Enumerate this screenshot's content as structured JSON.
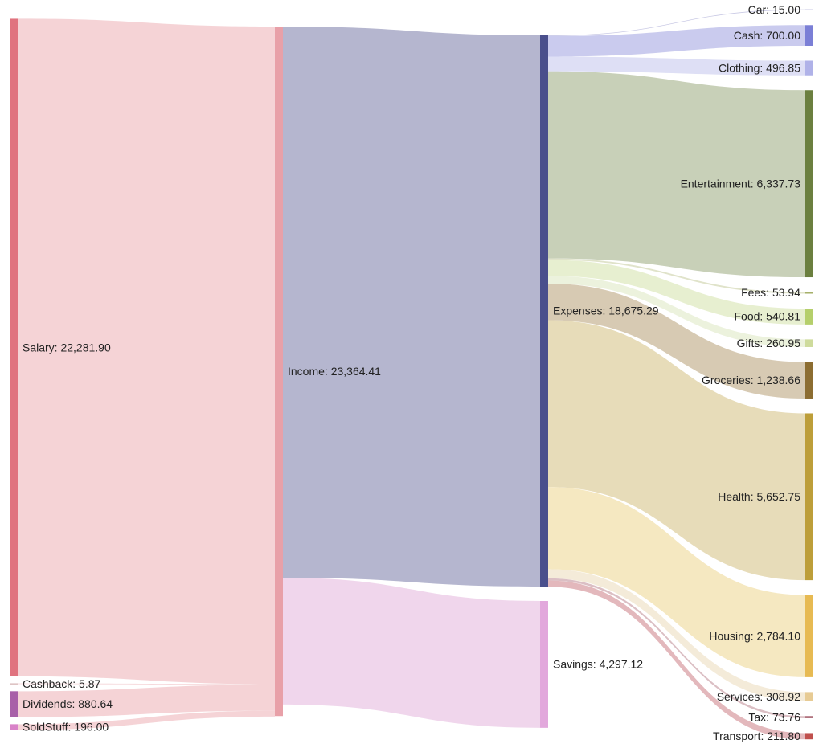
{
  "chart_data": {
    "type": "sankey",
    "title": "",
    "nodes": [
      {
        "id": "salary",
        "name": "Salary",
        "value_label": "22,281.90",
        "value": 22281.9,
        "column": 0,
        "color": "#e0737f"
      },
      {
        "id": "cashback",
        "name": "Cashback",
        "value_label": "5.87",
        "value": 5.87,
        "column": 0,
        "color": "#c9a0a0"
      },
      {
        "id": "dividends",
        "name": "Dividends",
        "value_label": "880.64",
        "value": 880.64,
        "column": 0,
        "color": "#a860a8"
      },
      {
        "id": "soldstuff",
        "name": "SoldStuff",
        "value_label": "196.00",
        "value": 196.0,
        "column": 0,
        "color": "#d982c8"
      },
      {
        "id": "income",
        "name": "Income",
        "value_label": "23,364.41",
        "value": 23364.41,
        "column": 1,
        "color": "#e8a0a8"
      },
      {
        "id": "expenses",
        "name": "Expenses",
        "value_label": "18,675.29",
        "value": 18675.29,
        "column": 2,
        "color": "#4a4f8c"
      },
      {
        "id": "savings",
        "name": "Savings",
        "value_label": "4,297.12",
        "value": 4297.12,
        "column": 2,
        "color": "#e2a8dc"
      },
      {
        "id": "car",
        "name": "Car",
        "value_label": "15.00",
        "value": 15.0,
        "column": 3,
        "color": "#8a8ac8"
      },
      {
        "id": "cash",
        "name": "Cash",
        "value_label": "700.00",
        "value": 700.0,
        "column": 3,
        "color": "#7b7fd6"
      },
      {
        "id": "clothing",
        "name": "Clothing",
        "value_label": "496.85",
        "value": 496.85,
        "column": 3,
        "color": "#b0b2e8"
      },
      {
        "id": "entertainment",
        "name": "Entertainment",
        "value_label": "6,337.73",
        "value": 6337.73,
        "column": 3,
        "color": "#6b7f3f"
      },
      {
        "id": "fees",
        "name": "Fees",
        "value_label": "53.94",
        "value": 53.94,
        "column": 3,
        "color": "#a6b06a"
      },
      {
        "id": "food",
        "name": "Food",
        "value_label": "540.81",
        "value": 540.81,
        "column": 3,
        "color": "#b5cf6b"
      },
      {
        "id": "gifts",
        "name": "Gifts",
        "value_label": "260.95",
        "value": 260.95,
        "column": 3,
        "color": "#cedb9c"
      },
      {
        "id": "groceries",
        "name": "Groceries",
        "value_label": "1,238.66",
        "value": 1238.66,
        "column": 3,
        "color": "#8c6d31"
      },
      {
        "id": "health",
        "name": "Health",
        "value_label": "5,652.75",
        "value": 5652.75,
        "column": 3,
        "color": "#bd9e39"
      },
      {
        "id": "housing",
        "name": "Housing",
        "value_label": "2,784.10",
        "value": 2784.1,
        "column": 3,
        "color": "#e7ba52"
      },
      {
        "id": "services",
        "name": "Services",
        "value_label": "308.92",
        "value": 308.92,
        "column": 3,
        "color": "#e7cb94"
      },
      {
        "id": "tax",
        "name": "Tax",
        "value_label": "73.76",
        "value": 73.76,
        "column": 3,
        "color": "#ad6c78"
      },
      {
        "id": "transport",
        "name": "Transport",
        "value_label": "211.80",
        "value": 211.8,
        "column": 3,
        "color": "#c0504d"
      }
    ],
    "links": [
      {
        "source": "salary",
        "target": "income",
        "value": 22281.9,
        "color": "#f2c4c8"
      },
      {
        "source": "cashback",
        "target": "income",
        "value": 5.87,
        "color": "#f2c4c8"
      },
      {
        "source": "dividends",
        "target": "income",
        "value": 880.64,
        "color": "#f2c4c8"
      },
      {
        "source": "soldstuff",
        "target": "income",
        "value": 196.0,
        "color": "#f2c4c8"
      },
      {
        "source": "income",
        "target": "expenses",
        "value": 18675.29,
        "color": "#9c9ebf"
      },
      {
        "source": "income",
        "target": "savings",
        "value": 4297.12,
        "color": "#ebc8e6"
      },
      {
        "source": "expenses",
        "target": "car",
        "value": 15.0,
        "color": "#b8b8dc"
      },
      {
        "source": "expenses",
        "target": "cash",
        "value": 700.0,
        "color": "#b8bae8"
      },
      {
        "source": "expenses",
        "target": "clothing",
        "value": 496.85,
        "color": "#d3d4f2"
      },
      {
        "source": "expenses",
        "target": "entertainment",
        "value": 6337.73,
        "color": "#b6c0a0"
      },
      {
        "source": "expenses",
        "target": "fees",
        "value": 53.94,
        "color": "#d6dab8"
      },
      {
        "source": "expenses",
        "target": "food",
        "value": 540.81,
        "color": "#dfeac0"
      },
      {
        "source": "expenses",
        "target": "gifts",
        "value": 260.95,
        "color": "#e6eed2"
      },
      {
        "source": "expenses",
        "target": "groceries",
        "value": 1238.66,
        "color": "#c9b89a"
      },
      {
        "source": "expenses",
        "target": "health",
        "value": 5652.75,
        "color": "#dfd0a2"
      },
      {
        "source": "expenses",
        "target": "housing",
        "value": 2784.1,
        "color": "#f2e0ac"
      },
      {
        "source": "expenses",
        "target": "services",
        "value": 308.92,
        "color": "#f0e4cc"
      },
      {
        "source": "expenses",
        "target": "tax",
        "value": 73.76,
        "color": "#cfaab0"
      },
      {
        "source": "expenses",
        "target": "transport",
        "value": 211.8,
        "color": "#d9a0a6"
      }
    ]
  }
}
